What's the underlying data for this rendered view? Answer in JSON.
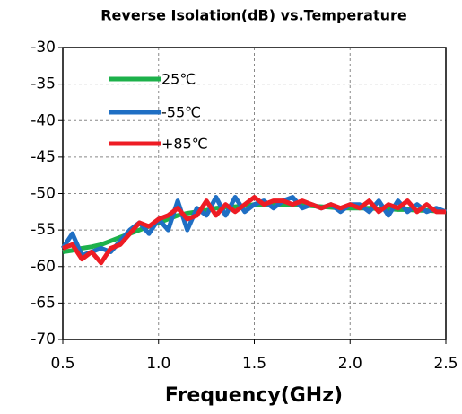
{
  "chart_data": {
    "type": "line",
    "title": "Reverse Isolation(dB) vs.Temperature",
    "x_label": "Frequency(GHz)",
    "x": [
      0.5,
      0.55,
      0.6,
      0.65,
      0.7,
      0.75,
      0.8,
      0.85,
      0.9,
      0.95,
      1.0,
      1.05,
      1.1,
      1.15,
      1.2,
      1.25,
      1.3,
      1.35,
      1.4,
      1.45,
      1.5,
      1.55,
      1.6,
      1.65,
      1.7,
      1.75,
      1.8,
      1.85,
      1.9,
      1.95,
      2.0,
      2.05,
      2.1,
      2.15,
      2.2,
      2.25,
      2.3,
      2.35,
      2.4,
      2.45,
      2.5
    ],
    "series": [
      {
        "name": "25℃",
        "color": "#1db14b",
        "values": [
          -58,
          -57.8,
          -57.5,
          -57.3,
          -57,
          -56.5,
          -56,
          -55.5,
          -55,
          -54.5,
          -54,
          -53.5,
          -53,
          -52.7,
          -52.5,
          -52.3,
          -52,
          -51.9,
          -51.8,
          -51.7,
          -51.5,
          -51.5,
          -51.5,
          -51.5,
          -51.5,
          -51.6,
          -51.7,
          -51.8,
          -51.9,
          -52,
          -52,
          -52,
          -52,
          -52.1,
          -52.1,
          -52.2,
          -52.2,
          -52.3,
          -52.3,
          -52.4,
          -52.5
        ]
      },
      {
        "name": "-55℃",
        "color": "#1f6fc4",
        "values": [
          -57.5,
          -55.5,
          -58.5,
          -58,
          -57.5,
          -58,
          -56.5,
          -55,
          -54,
          -55.5,
          -53.5,
          -55,
          -51,
          -55,
          -52,
          -53,
          -50.5,
          -53,
          -50.5,
          -52.5,
          -51.5,
          -51,
          -52,
          -51,
          -50.5,
          -52,
          -51.5,
          -52,
          -51.5,
          -52.5,
          -51.5,
          -51.5,
          -52.5,
          -51,
          -53,
          -51,
          -52.5,
          -51.5,
          -52.5,
          -52,
          -52.5
        ]
      },
      {
        "name": "+85℃",
        "color": "#ee1c24",
        "values": [
          -57.5,
          -57,
          -59,
          -58,
          -59.5,
          -57.5,
          -57,
          -55.5,
          -54,
          -54.5,
          -53.5,
          -53,
          -52,
          -53.5,
          -53,
          -51,
          -53,
          -51.5,
          -52.5,
          -51.5,
          -50.5,
          -51.5,
          -51,
          -51,
          -51.5,
          -51,
          -51.5,
          -52,
          -51.5,
          -52,
          -51.5,
          -52,
          -51,
          -52.5,
          -51.5,
          -52,
          -51,
          -52.5,
          -51.5,
          -52.5,
          -52.5
        ]
      }
    ],
    "xlim": [
      0.5,
      2.5
    ],
    "xticks": [
      0.5,
      {
        "value": 1,
        "label": "1.0"
      },
      1.5,
      {
        "value": 2,
        "label": "2.0"
      },
      2.5
    ],
    "ylim": [
      -70,
      -30
    ],
    "yticks": [
      -30,
      -35,
      -40,
      -45,
      -50,
      -55,
      -60,
      -65,
      -70
    ],
    "grid": true
  }
}
